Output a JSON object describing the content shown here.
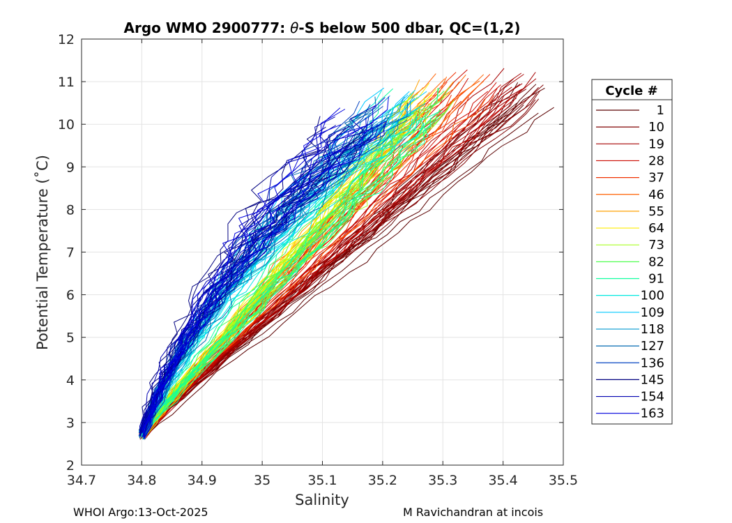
{
  "chart_data": {
    "type": "line",
    "title_prefix": "Argo WMO 2900777: ",
    "title_theta": "θ",
    "title_suffix": "-S below 500 dbar,  QC=(1,2)",
    "xlabel": "Salinity",
    "ylabel": "Potential Temperature (˚C)",
    "xlim": [
      34.7,
      35.5
    ],
    "ylim": [
      2,
      12
    ],
    "xticks": [
      "34.7",
      "34.8",
      "34.9",
      "35",
      "35.1",
      "35.2",
      "35.3",
      "35.4",
      "35.5"
    ],
    "yticks": [
      "2",
      "3",
      "4",
      "5",
      "6",
      "7",
      "8",
      "9",
      "10",
      "11",
      "12"
    ],
    "grid": true,
    "legend_title": "Cycle #",
    "legend_position": "outside-right",
    "series": [
      {
        "name": "1",
        "color": "#5a0000",
        "s_deep": 34.8,
        "s_top": 35.455,
        "t_top": 10.6
      },
      {
        "name": "10",
        "color": "#800000",
        "s_deep": 34.8,
        "s_top": 35.44,
        "t_top": 10.9
      },
      {
        "name": "19",
        "color": "#a60000",
        "s_deep": 34.8,
        "s_top": 35.42,
        "t_top": 11.0
      },
      {
        "name": "28",
        "color": "#cc0a00",
        "s_deep": 34.8,
        "s_top": 35.37,
        "t_top": 10.9
      },
      {
        "name": "37",
        "color": "#f03000",
        "s_deep": 34.8,
        "s_top": 35.35,
        "t_top": 10.9
      },
      {
        "name": "46",
        "color": "#ff6000",
        "s_deep": 34.8,
        "s_top": 35.33,
        "t_top": 10.8
      },
      {
        "name": "55",
        "color": "#ffa000",
        "s_deep": 34.8,
        "s_top": 35.3,
        "t_top": 10.7
      },
      {
        "name": "64",
        "color": "#ffee00",
        "s_deep": 34.8,
        "s_top": 35.28,
        "t_top": 10.6
      },
      {
        "name": "73",
        "color": "#a8ff20",
        "s_deep": 34.8,
        "s_top": 35.28,
        "t_top": 10.5
      },
      {
        "name": "82",
        "color": "#50ff50",
        "s_deep": 34.8,
        "s_top": 35.27,
        "t_top": 10.6
      },
      {
        "name": "91",
        "color": "#10ffa0",
        "s_deep": 34.8,
        "s_top": 35.26,
        "t_top": 10.5
      },
      {
        "name": "100",
        "color": "#00e8e0",
        "s_deep": 34.8,
        "s_top": 35.23,
        "t_top": 10.4
      },
      {
        "name": "109",
        "color": "#00c8ff",
        "s_deep": 34.8,
        "s_top": 35.24,
        "t_top": 10.5
      },
      {
        "name": "118",
        "color": "#0098d0",
        "s_deep": 34.8,
        "s_top": 35.22,
        "t_top": 10.4
      },
      {
        "name": "127",
        "color": "#0068b0",
        "s_deep": 34.8,
        "s_top": 35.2,
        "t_top": 10.3
      },
      {
        "name": "136",
        "color": "#0040c0",
        "s_deep": 34.8,
        "s_top": 35.18,
        "t_top": 10.2
      },
      {
        "name": "145",
        "color": "#000080",
        "s_deep": 34.8,
        "s_top": 35.14,
        "t_top": 9.9
      },
      {
        "name": "154",
        "color": "#0000b0",
        "s_deep": 34.8,
        "s_top": 35.16,
        "t_top": 10.1
      },
      {
        "name": "163",
        "color": "#0000dd",
        "s_deep": 34.8,
        "s_top": 35.17,
        "t_top": 10.3
      }
    ]
  },
  "footer": {
    "left": "WHOI Argo:13-Oct-2025",
    "right": "M Ravichandran at incois"
  }
}
